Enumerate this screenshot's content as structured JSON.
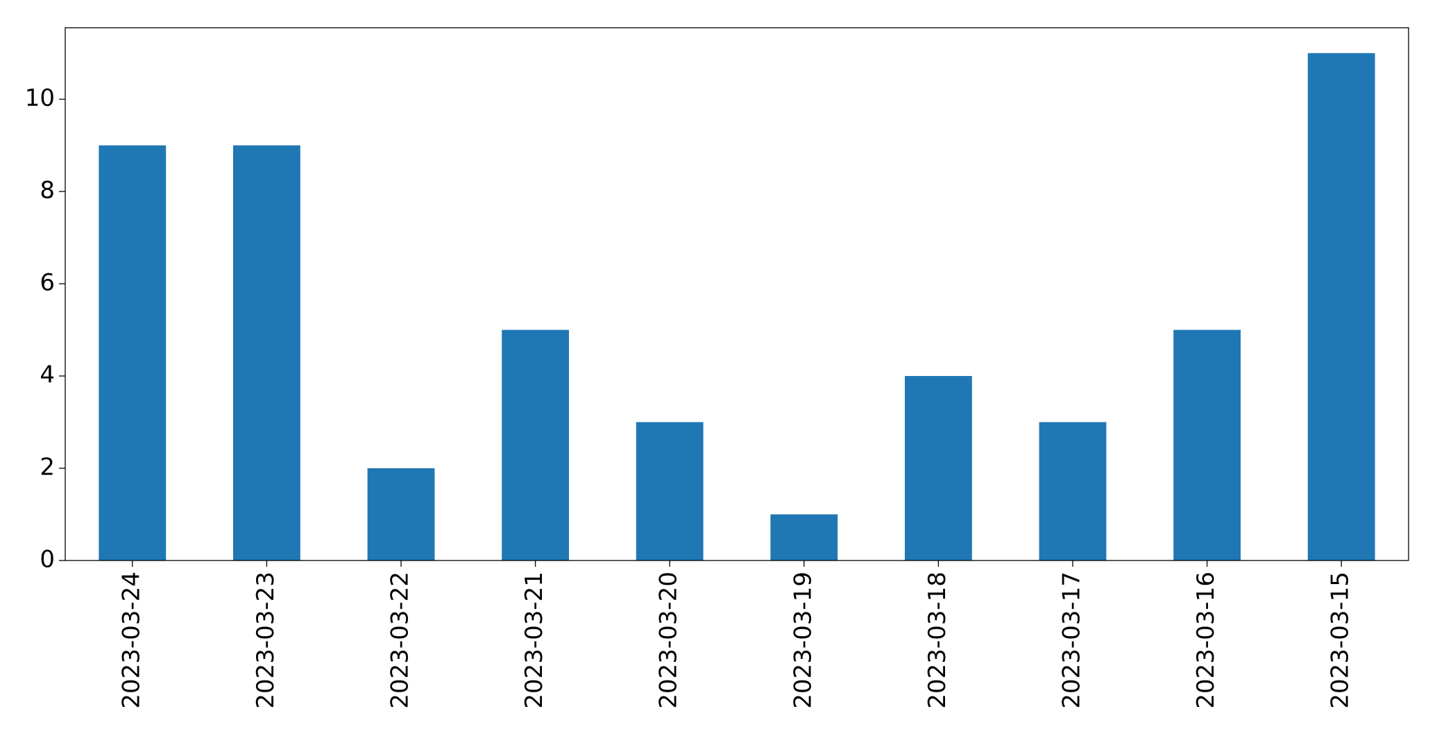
{
  "chart_data": {
    "type": "bar",
    "categories": [
      "2023-03-24",
      "2023-03-23",
      "2023-03-22",
      "2023-03-21",
      "2023-03-20",
      "2023-03-19",
      "2023-03-18",
      "2023-03-17",
      "2023-03-16",
      "2023-03-15"
    ],
    "values": [
      9,
      9,
      2,
      5,
      3,
      1,
      4,
      3,
      5,
      11
    ],
    "color": "#1f77b4",
    "ylim": [
      0,
      11.55
    ],
    "yticks": [
      0,
      2,
      4,
      6,
      8,
      10
    ],
    "grid": false
  }
}
